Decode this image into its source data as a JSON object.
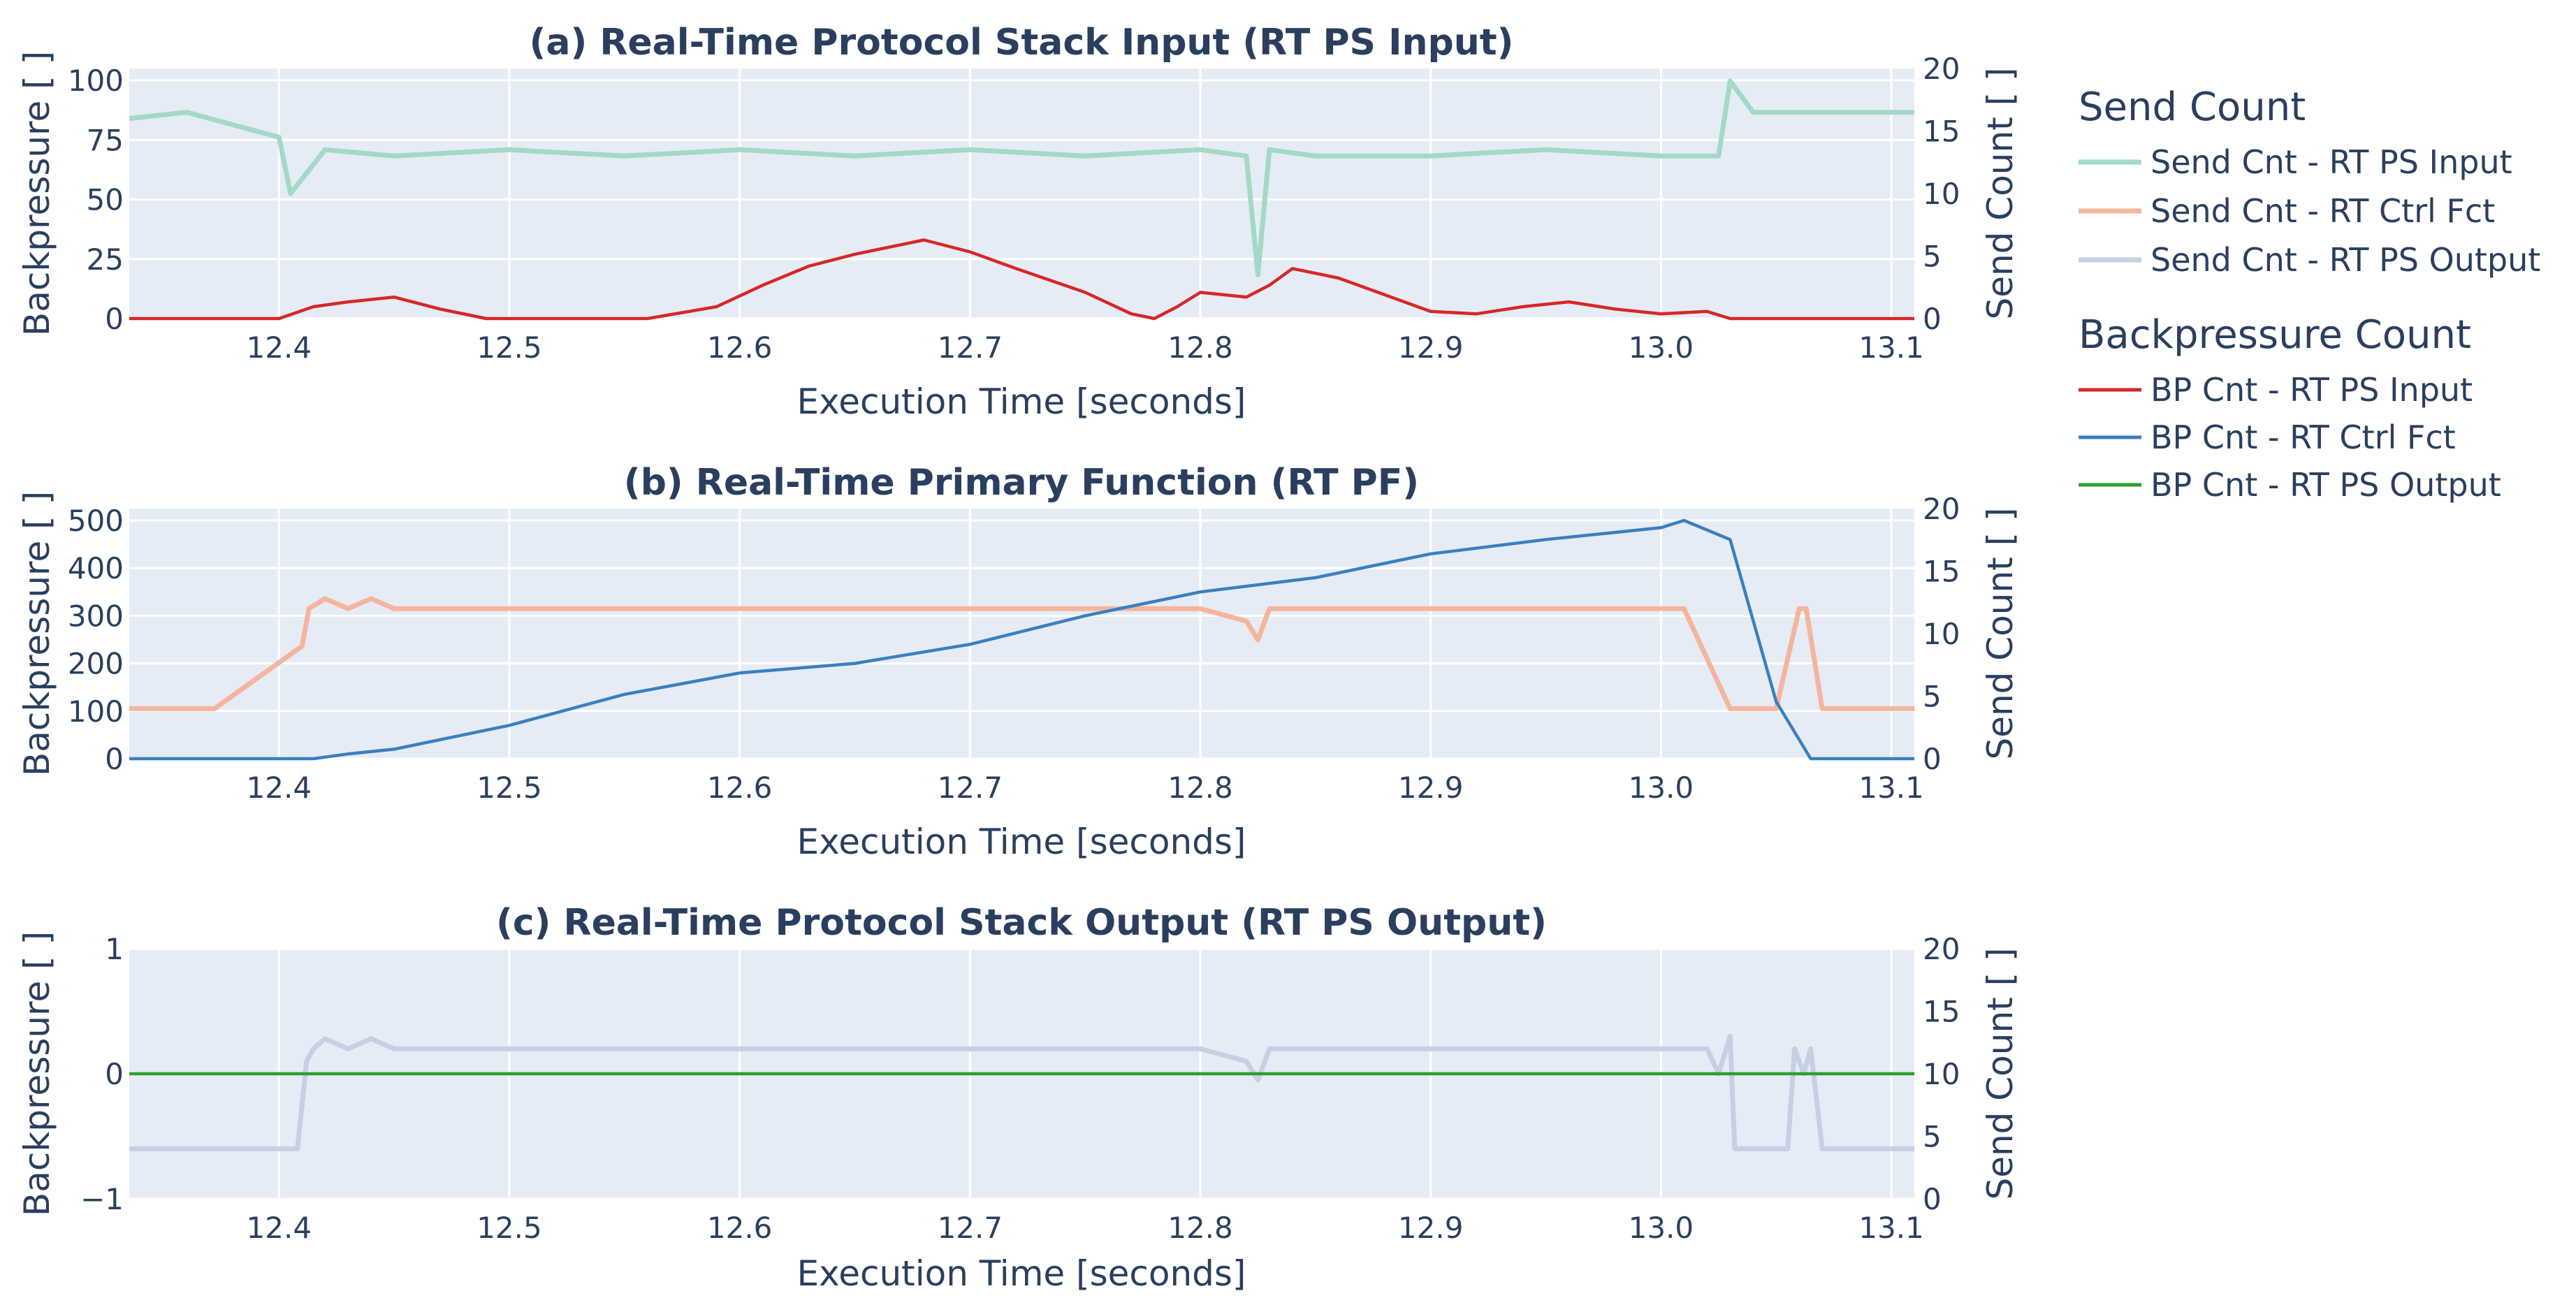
{
  "chart_data": [
    {
      "id": "a",
      "type": "line",
      "title": "(a) Real-Time Protocol Stack Input (RT PS Input)",
      "xlabel": "Execution Time [seconds]",
      "ylabel": "Backpressure [ ]",
      "y2label": "Send Count [ ]",
      "xlim": [
        12.335,
        13.11
      ],
      "xticks": [
        "12.4",
        "12.5",
        "12.6",
        "12.7",
        "12.8",
        "12.9",
        "13.0",
        "13.1"
      ],
      "ylim": [
        0,
        105
      ],
      "yticks": [
        0,
        25,
        50,
        75,
        100
      ],
      "y2lim": [
        0,
        20
      ],
      "y2ticks": [
        0,
        5,
        10,
        15,
        20
      ],
      "grid": true,
      "series": [
        {
          "name": "Send Cnt - RT PS Input",
          "axis": "right",
          "color": "#a3d9c6",
          "x": [
            12.335,
            12.36,
            12.38,
            12.4,
            12.405,
            12.42,
            12.45,
            12.5,
            12.55,
            12.6,
            12.65,
            12.7,
            12.75,
            12.8,
            12.82,
            12.825,
            12.83,
            12.85,
            12.9,
            12.95,
            13.0,
            13.025,
            13.03,
            13.04,
            13.07,
            13.11
          ],
          "y": [
            16,
            16.5,
            15.5,
            14.5,
            10,
            13.5,
            13,
            13.5,
            13,
            13.5,
            13,
            13.5,
            13,
            13.5,
            13,
            3.5,
            13.5,
            13,
            13,
            13.5,
            13,
            13,
            19,
            16.5,
            16.5,
            16.5
          ]
        },
        {
          "name": "BP Cnt - RT PS Input",
          "axis": "left",
          "color": "#d62728",
          "x": [
            12.335,
            12.4,
            12.415,
            12.43,
            12.45,
            12.47,
            12.49,
            12.5,
            12.56,
            12.59,
            12.61,
            12.63,
            12.65,
            12.67,
            12.68,
            12.7,
            12.72,
            12.75,
            12.77,
            12.78,
            12.79,
            12.8,
            12.82,
            12.83,
            12.84,
            12.86,
            12.88,
            12.9,
            12.92,
            12.94,
            12.96,
            12.98,
            13.0,
            13.02,
            13.03,
            13.05,
            13.11
          ],
          "y": [
            0,
            0,
            5,
            7,
            9,
            4,
            0,
            0,
            0,
            5,
            14,
            22,
            27,
            31,
            33,
            28,
            21,
            11,
            2,
            0,
            5,
            11,
            9,
            14,
            21,
            17,
            10,
            3,
            2,
            5,
            7,
            4,
            2,
            3,
            0,
            0,
            0
          ]
        }
      ]
    },
    {
      "id": "b",
      "type": "line",
      "title": "(b) Real-Time Primary Function (RT PF)",
      "xlabel": "Execution Time [seconds]",
      "ylabel": "Backpressure [ ]",
      "y2label": "Send Count [ ]",
      "xlim": [
        12.335,
        13.11
      ],
      "xticks": [
        "12.4",
        "12.5",
        "12.6",
        "12.7",
        "12.8",
        "12.9",
        "13.0",
        "13.1"
      ],
      "ylim": [
        0,
        525
      ],
      "yticks": [
        0,
        100,
        200,
        300,
        400,
        500
      ],
      "y2lim": [
        0,
        20
      ],
      "y2ticks": [
        0,
        5,
        10,
        15,
        20
      ],
      "grid": true,
      "series": [
        {
          "name": "Send Cnt - RT Ctrl Fct",
          "axis": "right",
          "color": "#f4b59d",
          "x": [
            12.335,
            12.372,
            12.41,
            12.413,
            12.42,
            12.43,
            12.44,
            12.45,
            12.6,
            12.8,
            12.82,
            12.825,
            12.83,
            13.0,
            13.01,
            13.03,
            13.05,
            13.06,
            13.063,
            13.07,
            13.11
          ],
          "y": [
            4,
            4,
            9,
            12,
            12.8,
            12,
            12.8,
            12,
            12,
            12,
            11,
            9.5,
            12,
            12,
            12,
            4,
            4,
            12,
            12,
            4,
            4
          ]
        },
        {
          "name": "BP Cnt - RT Ctrl Fct",
          "axis": "left",
          "color": "#3a7fbf",
          "x": [
            12.335,
            12.415,
            12.43,
            12.45,
            12.5,
            12.55,
            12.6,
            12.65,
            12.7,
            12.75,
            12.8,
            12.85,
            12.9,
            12.95,
            13.0,
            13.01,
            13.03,
            13.05,
            13.065,
            13.11
          ],
          "y": [
            0,
            0,
            10,
            20,
            70,
            135,
            180,
            200,
            240,
            300,
            350,
            380,
            430,
            460,
            485,
            500,
            460,
            120,
            0,
            0
          ]
        }
      ]
    },
    {
      "id": "c",
      "type": "line",
      "title": "(c) Real-Time Protocol Stack Output (RT PS Output)",
      "xlabel": "Execution Time [seconds]",
      "ylabel": "Backpressure [ ]",
      "y2label": "Send Count [ ]",
      "xlim": [
        12.335,
        13.11
      ],
      "xticks": [
        "12.4",
        "12.5",
        "12.6",
        "12.7",
        "12.8",
        "12.9",
        "13.0",
        "13.1"
      ],
      "ylim": [
        -1,
        1
      ],
      "yticks": [
        -1,
        0,
        1
      ],
      "ytick_labels": [
        "−1",
        "0",
        "1"
      ],
      "y2lim": [
        0,
        20
      ],
      "y2ticks": [
        0,
        5,
        10,
        15,
        20
      ],
      "grid": true,
      "series": [
        {
          "name": "Send Cnt - RT PS Output",
          "axis": "right",
          "color": "#c6cfe4",
          "x": [
            12.335,
            12.408,
            12.412,
            12.415,
            12.42,
            12.43,
            12.44,
            12.45,
            12.6,
            12.8,
            12.82,
            12.825,
            12.83,
            13.0,
            13.02,
            13.025,
            13.03,
            13.032,
            13.055,
            13.058,
            13.062,
            13.065,
            13.07,
            13.11
          ],
          "y": [
            4,
            4,
            11,
            12,
            12.8,
            12,
            12.8,
            12,
            12,
            12,
            11,
            9.5,
            12,
            12,
            12,
            10,
            13,
            4,
            4,
            12,
            10,
            12,
            4,
            4
          ]
        },
        {
          "name": "BP Cnt - RT PS Output",
          "axis": "left",
          "color": "#2ca02c",
          "x": [
            12.335,
            13.11
          ],
          "y": [
            0,
            0
          ]
        }
      ]
    }
  ],
  "legend": {
    "send_title": "Send Count",
    "bp_title": "Backpressure Count",
    "send_items": [
      {
        "label": "Send Cnt - RT PS Input",
        "color": "#a3d9c6"
      },
      {
        "label": "Send Cnt - RT Ctrl Fct",
        "color": "#f4b59d"
      },
      {
        "label": "Send Cnt - RT PS Output",
        "color": "#c6cfe4"
      }
    ],
    "bp_items": [
      {
        "label": "BP Cnt - RT PS Input",
        "color": "#d62728"
      },
      {
        "label": "BP Cnt - RT Ctrl Fct",
        "color": "#3a7fbf"
      },
      {
        "label": "BP Cnt - RT PS Output",
        "color": "#2ca02c"
      }
    ]
  },
  "colors": {
    "plot_bg": "#e5ecf6",
    "grid": "#ffffff",
    "text": "#2a3f5f"
  }
}
